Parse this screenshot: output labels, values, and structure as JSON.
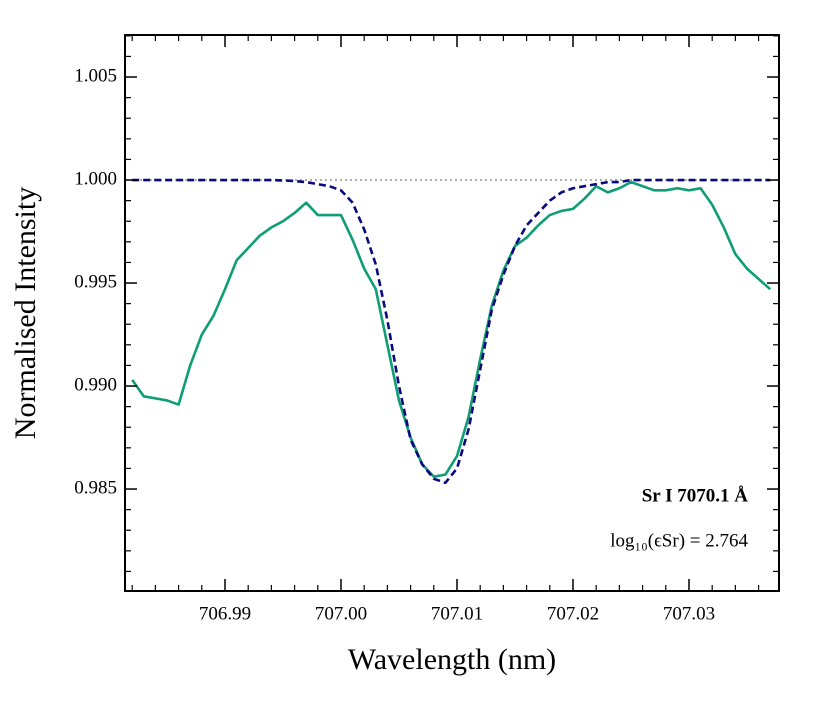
{
  "chart_data": {
    "type": "line",
    "x_label": "Wavelength (nm)",
    "y_label": "Normalised Intensity",
    "annotations": [
      "Sr I  7070.1 Å",
      "log₁₀(ϵSr) = 2.764"
    ],
    "reference_line": 1,
    "xlim": [
      706.98138,
      707.03776
    ],
    "ylim": [
      0.98005,
      1.00704
    ],
    "xticks": [
      706.99,
      {
        "value": 707.0,
        "label": "707.00"
      },
      707.01,
      707.02,
      707.03
    ],
    "yticks": [
      0.985,
      {
        "value": 0.99,
        "label": "0.990"
      },
      0.995,
      {
        "value": 1.0,
        "label": "1.000"
      },
      1.005
    ],
    "xminorticks": [
      706.982,
      706.984,
      706.986,
      706.988,
      706.992,
      706.994,
      706.996,
      706.998,
      707.002,
      707.004,
      707.006,
      707.008,
      707.012,
      707.014,
      707.016,
      707.018,
      707.022,
      707.024,
      707.026,
      707.028,
      707.032,
      707.034,
      707.036
    ],
    "yminorticks": [
      0.981,
      0.982,
      0.983,
      0.984,
      0.986,
      0.987,
      0.988,
      0.989,
      0.991,
      0.992,
      0.993,
      0.994,
      0.996,
      0.997,
      0.998,
      0.999,
      1.001,
      1.002,
      1.003,
      1.004,
      1.006,
      1.007
    ],
    "x": [
      706.982,
      706.983,
      706.984,
      706.985,
      706.986,
      706.987,
      706.988,
      706.989,
      706.99,
      706.991,
      706.992,
      706.993,
      706.994,
      706.995,
      706.996,
      706.997,
      706.998,
      706.999,
      707.0,
      707.001,
      707.002,
      707.003,
      707.004,
      707.005,
      707.006,
      707.007,
      707.008,
      707.009,
      707.01,
      707.011,
      707.012,
      707.013,
      707.014,
      707.015,
      707.016,
      707.017,
      707.018,
      707.019,
      707.02,
      707.021,
      707.022,
      707.023,
      707.024,
      707.025,
      707.026,
      707.027,
      707.028,
      707.029,
      707.03,
      707.031,
      707.032,
      707.033,
      707.034,
      707.035,
      707.036,
      707.037
    ],
    "series": [
      {
        "color": "#0f9d74",
        "style": "solid",
        "values": [
          0.9903,
          0.9895,
          0.9894,
          0.9893,
          0.9891,
          0.991,
          0.9925,
          0.9934,
          0.9947,
          0.9961,
          0.9967,
          0.9973,
          0.9977,
          0.998,
          0.9984,
          0.9989,
          0.9983,
          0.9983,
          0.9983,
          0.9971,
          0.9957,
          0.9947,
          0.992,
          0.9893,
          0.9875,
          0.9862,
          0.9856,
          0.9857,
          0.9866,
          0.9885,
          0.9913,
          0.9939,
          0.9956,
          0.9968,
          0.9972,
          0.9978,
          0.9983,
          0.9985,
          0.9986,
          0.9991,
          0.9997,
          0.9994,
          0.9996,
          0.9999,
          0.9997,
          0.9995,
          0.9995,
          0.9996,
          0.9995,
          0.9996,
          0.9988,
          0.9977,
          0.9964,
          0.9957,
          0.9952,
          0.9947
        ]
      },
      {
        "color": "#0a0a80",
        "style": "dashed",
        "values": [
          1.0,
          1.0,
          1.0,
          1.0,
          1.0,
          1.0,
          1.0,
          1.0,
          1.0,
          1.0,
          1.0,
          1.0,
          1.0,
          0.99998,
          0.99995,
          0.9999,
          0.9998,
          0.9997,
          0.9995,
          0.9989,
          0.9976,
          0.9959,
          0.9932,
          0.99,
          0.9874,
          0.9862,
          0.9855,
          0.9853,
          0.986,
          0.9879,
          0.9908,
          0.9937,
          0.9954,
          0.9968,
          0.9978,
          0.9984,
          0.999,
          0.9994,
          0.9996,
          0.9997,
          0.9998,
          0.9999,
          0.9999,
          1.0,
          1.0,
          1.0,
          1.0,
          1.0,
          1.0,
          1.0,
          1.0,
          1.0,
          1.0,
          1.0,
          1.0,
          1.0
        ]
      }
    ]
  }
}
